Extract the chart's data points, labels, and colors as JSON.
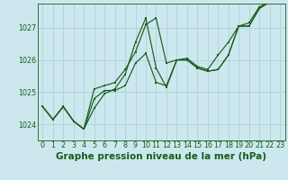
{
  "title": "Graphe pression niveau de la mer (hPa)",
  "bg_color": "#cce8ee",
  "grid_color": "#b0d4da",
  "line_color": "#1a5c1a",
  "hours": [
    0,
    1,
    2,
    3,
    4,
    5,
    6,
    7,
    8,
    9,
    10,
    11,
    12,
    13,
    14,
    15,
    16,
    17,
    18,
    19,
    20,
    21,
    22,
    23
  ],
  "line1": [
    1024.55,
    1024.15,
    1024.55,
    1024.1,
    1023.85,
    1024.5,
    1024.95,
    1025.1,
    1025.55,
    1026.55,
    1027.3,
    1025.75,
    1025.15,
    1026.0,
    1026.0,
    1025.75,
    1025.65,
    1025.7,
    1026.15,
    1027.05,
    1027.05,
    1027.6,
    1027.8,
    1027.85
  ],
  "line2": [
    1024.55,
    1024.15,
    1024.55,
    1024.1,
    1023.85,
    1025.1,
    1025.2,
    1025.3,
    1025.7,
    1026.25,
    1027.1,
    1027.3,
    1025.9,
    1026.0,
    1026.05,
    1025.8,
    1025.7,
    1026.15,
    1026.55,
    1027.05,
    1027.15,
    1027.65,
    1027.8,
    1027.85
  ],
  "line3": [
    1024.55,
    1024.15,
    1024.55,
    1024.1,
    1023.85,
    1024.8,
    1025.05,
    1025.05,
    1025.2,
    1025.9,
    1026.2,
    1025.3,
    1025.2,
    1026.0,
    1026.0,
    1025.75,
    1025.65,
    1025.7,
    1026.15,
    1027.05,
    1027.05,
    1027.6,
    1027.8,
    1027.85
  ],
  "ylim": [
    1023.5,
    1027.75
  ],
  "yticks": [
    1024,
    1025,
    1026,
    1027
  ],
  "xlim": [
    -0.5,
    23.5
  ],
  "title_fontsize": 7.5,
  "tick_fontsize": 5.8
}
